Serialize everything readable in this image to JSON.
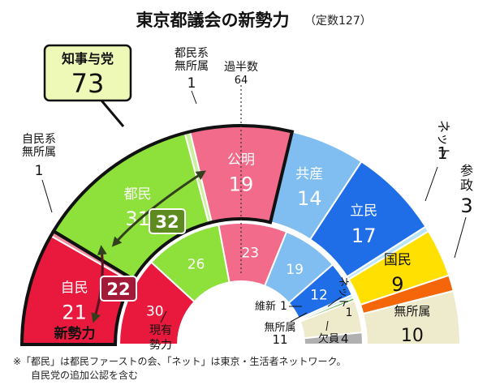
{
  "chart_data": {
    "type": "pie",
    "title": "東京都議会の新勢力",
    "subtitle": "（定数127）",
    "majority_label": "過半数",
    "majority_value": 64,
    "new": {
      "label": "新勢力",
      "segments": [
        {
          "name": "自民",
          "value": 21,
          "color": "#e8193c"
        },
        {
          "name": "自民系無所属",
          "value": 1,
          "color": "#f08fa0"
        },
        {
          "name": "都民",
          "value": 31,
          "color": "#8ee03a"
        },
        {
          "name": "都民系無所属",
          "value": 1,
          "color": "#c9f09a"
        },
        {
          "name": "公明",
          "value": 19,
          "color": "#f26b8b"
        },
        {
          "name": "共産",
          "value": 14,
          "color": "#80bdf0"
        },
        {
          "name": "立民",
          "value": 17,
          "color": "#1f6ee8"
        },
        {
          "name": "ネット",
          "value": 1,
          "color": "#b8e4f8"
        },
        {
          "name": "国民",
          "value": 9,
          "color": "#ffe000"
        },
        {
          "name": "参政",
          "value": 3,
          "color": "#f5650a"
        },
        {
          "name": "無所属",
          "value": 10,
          "color": "#eeeacc"
        }
      ]
    },
    "current": {
      "label": "現有勢力",
      "segments": [
        {
          "name": "自民",
          "value": 30,
          "color": "#e8193c"
        },
        {
          "name": "都民",
          "value": 26,
          "color": "#8ee03a"
        },
        {
          "name": "公明",
          "value": 23,
          "color": "#f26b8b"
        },
        {
          "name": "共産",
          "value": 19,
          "color": "#80bdf0"
        },
        {
          "name": "立民",
          "value": 12,
          "color": "#1f6ee8"
        },
        {
          "name": "ネット",
          "value": 1,
          "color": "#b8e4f8"
        },
        {
          "name": "維新",
          "value": 1,
          "color": "#6fb34a"
        },
        {
          "name": "無所属",
          "value": 11,
          "color": "#eeeacc"
        },
        {
          "name": "欠員",
          "value": 4,
          "color": "#b0b0b0"
        }
      ]
    },
    "callouts": {
      "ruling_label": "知事与党",
      "ruling_value": 73,
      "tomin_diff": 32,
      "jimin_diff": 22
    },
    "notes": [
      "※「都民」は都民ファーストの会、「ネット」は東京・生活者ネットワーク。",
      "自民党の追加公認を含む"
    ]
  }
}
